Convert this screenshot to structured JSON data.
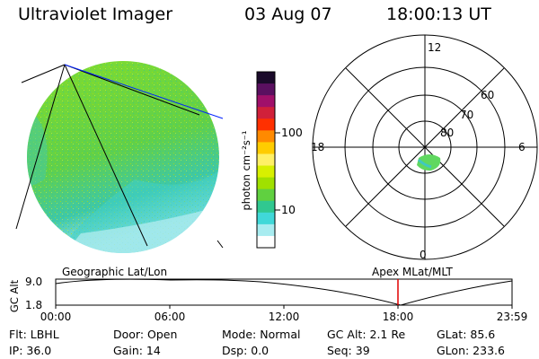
{
  "header": {
    "title": "Ultraviolet Imager",
    "date": "03 Aug 07",
    "time": "18:00:13 UT"
  },
  "colorbar": {
    "label": "photon cm⁻²s⁻¹",
    "ticks": [
      "100",
      "10"
    ],
    "colors": [
      "#1a0a2a",
      "#5a1060",
      "#a0106a",
      "#d0203a",
      "#ff3000",
      "#ff8a00",
      "#ffcc00",
      "#fff066",
      "#d8f000",
      "#a0e000",
      "#60d040",
      "#30c890",
      "#40d8d8",
      "#a8ecf0",
      "#ffffff"
    ]
  },
  "polar": {
    "labels": {
      "top": "12",
      "bottom": "0",
      "left": "18",
      "right": "6"
    },
    "rings": [
      "60",
      "70",
      "80"
    ]
  },
  "timeline": {
    "ylabel": "GC Alt",
    "ymax": "9.0",
    "ymin": "1.8",
    "left_label": "Geographic Lat/Lon",
    "right_label": "Apex MLat/MLT",
    "ticks": [
      "00:00",
      "06:00",
      "12:00",
      "18:00",
      "23:59"
    ],
    "marker_hour": 18.0
  },
  "info": {
    "filter": "Flt: LBHL",
    "ip": "IP: 36.0",
    "door": "Door: Open",
    "gain": "Gain: 14",
    "mode": "Mode: Normal",
    "dsp": "Dsp:      0.0",
    "gc_alt": "GC Alt: 2.1 Re",
    "seq": "Seq: 39",
    "glat": "GLat:  85.6",
    "glon": "GLon: 233.6"
  }
}
